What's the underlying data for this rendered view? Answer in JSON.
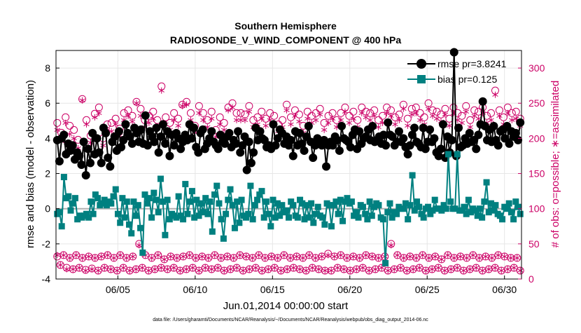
{
  "chart_data": {
    "type": "line",
    "title": "Southern Hemisphere",
    "subtitle": "RADIOSONDE_V_WIND_COMPONENT @ 400 hPa",
    "xlabel": "Jun.01,2014 00:00:00 start",
    "ylabel": "rmse and bias (model - observation)",
    "ylabel_right": "# of obs: o=possible; ∗=assimilated",
    "footnote": "data file: /Users/gharamti/Documents/NCAR/Reanalysis/~/Documents/NCAR/Reanalysis/webpub/obs_diag_output_2014-06.nc",
    "xlim": [
      1.0,
      31.1
    ],
    "ylim": [
      -4,
      9
    ],
    "ylim_right": [
      0,
      325
    ],
    "x_ticks": [
      5,
      10,
      15,
      20,
      25,
      30
    ],
    "x_tick_labels": [
      "06/05",
      "06/10",
      "06/15",
      "06/20",
      "06/25",
      "06/30"
    ],
    "y_ticks": [
      -4,
      -2,
      0,
      2,
      4,
      6,
      8
    ],
    "y_tick_labels": [
      "-4",
      "-2",
      "0",
      "2",
      "4",
      "6",
      "8"
    ],
    "y_right_ticks": [
      0,
      50,
      100,
      150,
      200,
      250,
      300
    ],
    "y_right_tick_labels": [
      "0",
      "50",
      "100",
      "150",
      "200",
      "250",
      "300"
    ],
    "legend_position": "top-right",
    "series": [
      {
        "name": "rmse pr=3.8241",
        "color": "#000000",
        "values": [
          3.9,
          2.7,
          4.0,
          4.2,
          3.1,
          3.7,
          3.3,
          3.6,
          2.8,
          3.2,
          3.0,
          2.5,
          3.8,
          1.9,
          3.4,
          2.6,
          4.3,
          3.1,
          4.0,
          3.2,
          2.6,
          4.6,
          4.3,
          2.9,
          2.4,
          3.8,
          4.1,
          3.3,
          4.4,
          3.5,
          3.9,
          4.8,
          4.3,
          4.1,
          3.7,
          4.6,
          4.3,
          3.8,
          4.5,
          3.7,
          5.3,
          3.6,
          4.4,
          4.1,
          3.8,
          4.6,
          3.2,
          4.1,
          4.8,
          3.7,
          4.4,
          3.0,
          4.2,
          3.6,
          4.3,
          4.0,
          3.4,
          3.8,
          4.2,
          3.9,
          4.8,
          4.0,
          4.6,
          3.5,
          3.2,
          4.3,
          4.5,
          3.4,
          3.7,
          4.0,
          4.4,
          3.8,
          3.6,
          3.4,
          4.2,
          3.8,
          3.7,
          4.1,
          4.3,
          3.5,
          3.9,
          3.7,
          4.4,
          3.2,
          3.6,
          4.1,
          2.2,
          3.8,
          2.6,
          3.2,
          4.6,
          3.9,
          4.4,
          4.0,
          3.9,
          3.5,
          3.6,
          3.4,
          4.8,
          3.6,
          4.0,
          4.5,
          4.3,
          3.7,
          4.1,
          3.6,
          3.9,
          3.0,
          4.4,
          3.6,
          4.3,
          3.7,
          3.3,
          4.1,
          4.7,
          3.8,
          2.9,
          3.6,
          4.0,
          3.7,
          3.6,
          3.9,
          2.4,
          3.6,
          3.8,
          3.6,
          4.1,
          3.9,
          3.3,
          4.7,
          4.0,
          3.9,
          3.8,
          3.5,
          4.2,
          4.5,
          3.4,
          4.4,
          3.7,
          4.0,
          4.1,
          4.5,
          3.9,
          4.7,
          3.8,
          3.9,
          4.1,
          3.7,
          4.2,
          3.6,
          4.9,
          4.2,
          4.1,
          3.6,
          3.8,
          4.4,
          3.8,
          4.0,
          3.5,
          3.1,
          3.6,
          4.2,
          4.6,
          3.8,
          3.7,
          3.5,
          4.6,
          3.4,
          3.8,
          4.5,
          3.8,
          4.0,
          3.2,
          3.0,
          3.4,
          4.8,
          2.9,
          4.1,
          3.2,
          3.9,
          8.9,
          3.0,
          4.6,
          3.5,
          3.6,
          4.0,
          3.7,
          4.3,
          3.8,
          3.9,
          3.4,
          4.2,
          4.8,
          6.1,
          4.7,
          3.9,
          4.5,
          3.8,
          4.7,
          3.9,
          3.6,
          4.4,
          4.5,
          4.0,
          4.7,
          3.7,
          4.4,
          4.1,
          4.3,
          3.9,
          4.9
        ],
        "marker": "filled-circle"
      },
      {
        "name": "bias pr=0.125",
        "color": "#008080",
        "values": [
          -0.3,
          -0.2,
          -1.0,
          1.8,
          0.6,
          0.7,
          -0.1,
          0.3,
          0.6,
          -0.6,
          -0.4,
          -0.5,
          -0.4,
          -0.3,
          -0.5,
          0.4,
          -0.3,
          0.8,
          0.6,
          0.2,
          0.3,
          0.5,
          0.2,
          0.4,
          0.3,
          0.7,
          1.1,
          -0.3,
          -0.8,
          0.6,
          -0.5,
          0.4,
          -0.9,
          -1.4,
          0.4,
          -0.4,
          0.2,
          -1.1,
          -2.5,
          0.8,
          0.3,
          0.6,
          -0.5,
          0.9,
          0.5,
          -0.2,
          1.7,
          0.4,
          -1.5,
          0.5,
          -0.6,
          -0.3,
          -0.4,
          -0.5,
          0.7,
          -0.4,
          -0.6,
          1.4,
          -0.3,
          0.4,
          1.0,
          -0.5,
          0.5,
          -0.4,
          0.3,
          -0.2,
          0.6,
          -0.3,
          0.4,
          -1.3,
          0.8,
          1.3,
          0.3,
          -0.6,
          -1.7,
          -0.3,
          0.5,
          1.1,
          0.2,
          -1.1,
          0.4,
          -0.8,
          0.5,
          -0.4,
          -0.5,
          -0.3,
          1.3,
          -0.6,
          0.2,
          0.5,
          0.8,
          1.0,
          -0.5,
          0.4,
          -0.3,
          -1.0,
          0.5,
          -0.5,
          0.3,
          -0.4,
          0.2,
          -0.2,
          -0.1,
          -0.5,
          0.4,
          0.2,
          -0.4,
          -0.5,
          0.5,
          0.3,
          -0.6,
          0.2,
          -0.5,
          0.3,
          -0.8,
          -0.3,
          0.1,
          -0.4,
          -0.5,
          -0.9,
          0.3,
          0.2,
          -1.0,
          0.2,
          0.4,
          -0.3,
          0.5,
          -0.7,
          0.4,
          0.6,
          0.3,
          0.4,
          -0.4,
          -0.2,
          -0.5,
          0.2,
          0.1,
          -0.3,
          -0.6,
          0.4,
          -0.4,
          0.1,
          0.3,
          0.2,
          -0.5,
          -0.6,
          -3.1,
          -0.2,
          0.3,
          -0.5,
          -0.2,
          -0.3,
          0.1,
          0.0,
          0.0,
          0.3,
          -0.6,
          0.2,
          1.9,
          -0.1,
          0.4,
          0.1,
          -0.3,
          -0.5,
          0.0,
          0.1,
          -0.3,
          -0.1,
          0.5,
          0.0,
          0.0,
          -0.1,
          0.2,
          0.0,
          3.1,
          0.4,
          0.0,
          0.0,
          3.1,
          -0.1,
          -0.1,
          0.1,
          -0.3,
          0.5,
          -0.2,
          0.0,
          -0.1,
          -0.4,
          0.0,
          -0.5,
          0.4,
          1.5,
          -0.2,
          0.3,
          -0.1,
          0.2,
          -0.3,
          -0.4,
          -0.6,
          0.1,
          0.0,
          0.3,
          -0.2,
          -0.6,
          0.4,
          0.1,
          -0.3
        ],
        "marker": "filled-square"
      }
    ],
    "obs_possible_color": "#cc0066",
    "obs_possible_low": [
      32,
      20,
      34,
      16,
      30,
      14,
      34,
      16,
      30,
      13,
      32,
      15,
      30,
      12,
      32,
      16,
      34,
      14,
      30,
      12,
      34,
      16,
      30,
      12,
      32,
      14,
      50,
      16,
      34,
      12,
      30,
      14,
      34,
      16,
      28,
      14,
      32,
      16,
      30,
      12,
      32,
      14,
      34,
      16,
      30,
      12,
      32,
      16,
      30,
      14,
      34,
      16,
      30,
      12,
      32,
      14,
      30,
      16,
      34,
      12,
      32,
      14,
      30,
      16,
      34,
      12,
      30,
      14,
      32,
      16,
      30,
      12,
      34,
      14,
      30,
      16,
      32,
      14,
      30,
      12,
      34,
      16,
      30,
      14,
      32,
      12,
      36,
      12,
      32,
      16,
      34,
      14,
      30,
      12,
      32,
      14,
      30,
      16,
      34,
      12,
      32,
      14,
      30,
      16,
      32,
      12,
      50,
      14,
      34,
      16,
      30,
      12,
      32,
      14,
      30,
      16,
      34,
      12,
      30,
      14,
      32,
      16,
      28,
      12,
      34,
      14,
      30,
      16,
      32,
      12,
      30,
      14,
      34,
      16,
      30,
      12,
      32,
      14,
      30,
      16,
      34,
      12,
      32,
      14,
      30,
      16,
      30,
      12
    ],
    "obs_possible_high": [
      222,
      208,
      230,
      218,
      212,
      198,
      256,
      226,
      204,
      235,
      244,
      200,
      220,
      222,
      228,
      214,
      236,
      240,
      232,
      252,
      242,
      226,
      232,
      238,
      226,
      274,
      230,
      222,
      236,
      228,
      248,
      252,
      236,
      218,
      246,
      236,
      226,
      238,
      212,
      230,
      222,
      244,
      250,
      236,
      236,
      234,
      246,
      226,
      230,
      238,
      228,
      236,
      232,
      220,
      226,
      248,
      230,
      240,
      234,
      218,
      238,
      232,
      236,
      242,
      222,
      232,
      236,
      226,
      236,
      244,
      232,
      238,
      226,
      244,
      238,
      236,
      240,
      226,
      232,
      244,
      240,
      230,
      234,
      248,
      228,
      242,
      244,
      236,
      230,
      250,
      240,
      238,
      234,
      242,
      228,
      244,
      236,
      232,
      246,
      226,
      240,
      238,
      244,
      232,
      236,
      268,
      240,
      230,
      244,
      236,
      238,
      228
    ],
    "obs_assimilated_low": [
      34,
      20,
      34,
      14,
      30,
      14,
      34,
      16,
      30,
      12,
      32,
      14,
      30,
      12,
      32,
      16,
      34,
      14,
      30,
      12,
      34,
      16,
      30,
      12,
      32,
      14,
      48,
      16,
      34,
      12,
      30,
      14,
      34,
      16,
      28,
      14,
      32,
      16,
      30,
      12,
      32,
      14,
      34,
      16,
      30,
      12,
      32,
      16,
      30,
      14,
      34,
      16,
      30,
      12,
      32,
      14,
      30,
      16,
      34,
      12,
      32,
      14,
      30,
      16,
      34,
      12,
      30,
      14,
      32,
      16,
      30,
      12,
      34,
      14,
      30,
      16,
      32,
      14,
      30,
      12,
      34,
      16,
      30,
      14,
      32,
      12,
      34,
      12,
      32,
      16,
      34,
      14,
      30,
      12,
      32,
      14,
      30,
      16,
      34,
      12,
      32,
      14,
      30,
      16,
      32,
      12,
      48,
      14,
      34,
      16,
      30,
      12,
      32,
      14,
      30,
      16,
      34,
      12,
      30,
      14,
      32,
      16,
      28,
      12,
      34,
      14,
      30,
      16,
      32,
      12,
      30,
      14,
      34,
      16,
      30,
      12,
      32,
      14,
      30,
      16,
      34,
      12,
      32,
      14,
      30,
      16,
      30,
      12
    ],
    "obs_assimilated_high": [
      212,
      196,
      222,
      206,
      200,
      186,
      254,
      220,
      194,
      230,
      236,
      190,
      212,
      210,
      220,
      204,
      226,
      232,
      224,
      250,
      232,
      216,
      222,
      228,
      216,
      268,
      220,
      212,
      226,
      218,
      246,
      248,
      226,
      208,
      236,
      226,
      216,
      228,
      202,
      220,
      212,
      240,
      244,
      226,
      226,
      226,
      238,
      216,
      220,
      228,
      218,
      226,
      222,
      210,
      216,
      240,
      220,
      232,
      224,
      208,
      228,
      222,
      226,
      234,
      212,
      222,
      228,
      216,
      226,
      238,
      222,
      228,
      216,
      236,
      230,
      226,
      232,
      216,
      222,
      236,
      232,
      220,
      226,
      242,
      218,
      234,
      236,
      226,
      220,
      242,
      232,
      228,
      224,
      234,
      218,
      236,
      226,
      222,
      238,
      216,
      232,
      228,
      236,
      222,
      226,
      262,
      232,
      220,
      236,
      226,
      228,
      218
    ]
  }
}
